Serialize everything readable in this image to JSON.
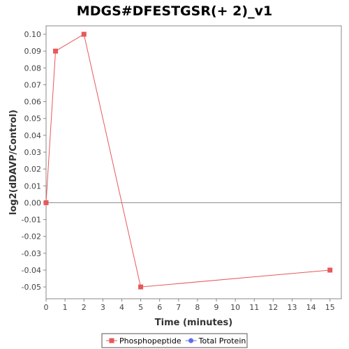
{
  "chart_data": {
    "type": "line",
    "title": "MDGS#DFESTGSR(+ 2)_v1",
    "xlabel": "Time (minutes)",
    "ylabel": "log2(dDAVP/Control)",
    "xlim": [
      0,
      15.6
    ],
    "ylim": [
      -0.057,
      0.105
    ],
    "xticks": [
      0,
      1,
      2,
      3,
      4,
      5,
      6,
      7,
      8,
      9,
      10,
      11,
      12,
      13,
      14,
      15
    ],
    "xtick_labels": [
      "0",
      "1",
      "2",
      "3",
      "4",
      "5",
      "6",
      "7",
      "8",
      "9",
      "10",
      "11",
      "12",
      "13",
      "14",
      "15"
    ],
    "yticks": [
      0.1,
      0.09,
      0.08,
      0.07,
      0.06,
      0.05,
      0.04,
      0.03,
      0.02,
      0.01,
      0.0,
      -0.01,
      -0.02,
      -0.03,
      -0.04,
      -0.05
    ],
    "ytick_labels": [
      "0.10",
      "0.09",
      "0.08",
      "0.07",
      "0.06",
      "0.05",
      "0.04",
      "0.03",
      "0.02",
      "0.01",
      "0.00",
      "-0.01",
      "-0.02",
      "-0.03",
      "-0.04",
      "-0.05"
    ],
    "zero_line": true,
    "grid": false,
    "legend_position": "bottom",
    "series": [
      {
        "name": "Phosphopeptide",
        "color": "#e8585a",
        "marker": "square",
        "x": [
          0,
          0.5,
          2,
          5,
          15
        ],
        "y": [
          0.0,
          0.09,
          0.1,
          -0.05,
          -0.04
        ]
      },
      {
        "name": "Total Protein",
        "color": "#5b6cf0",
        "marker": "circle",
        "x": [],
        "y": []
      }
    ]
  }
}
